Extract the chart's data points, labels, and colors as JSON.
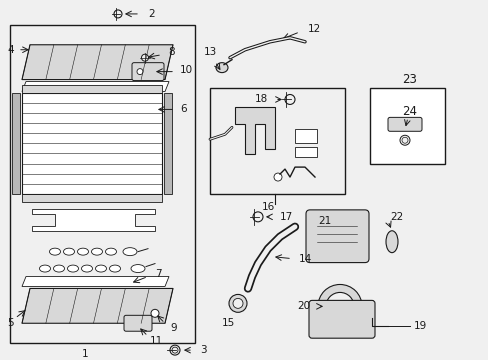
{
  "bg_color": "#f0f0f0",
  "line_color": "#1a1a1a",
  "white": "#ffffff",
  "light_gray": "#d8d8d8",
  "mid_gray": "#b8b8b8",
  "dark_gray": "#888888"
}
